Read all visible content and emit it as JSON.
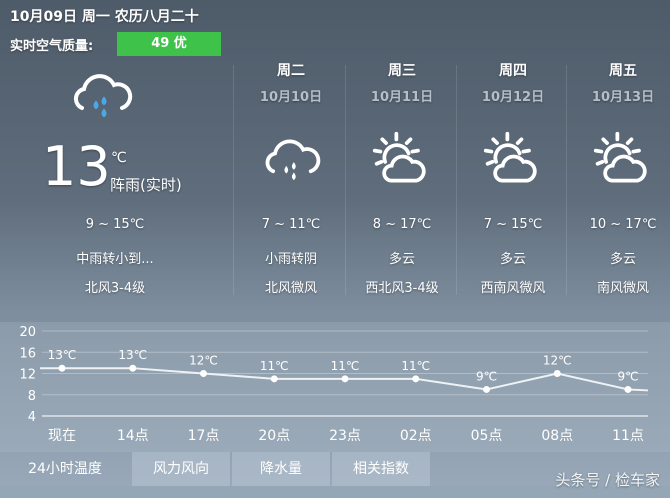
{
  "header": {
    "date_line": "10月09日 周一 农历八月二十",
    "aqi_label": "实时空气质量:",
    "aqi_value": "49 优",
    "aqi_color": "#3fc24a"
  },
  "today": {
    "icon": "rain-cloud-icon",
    "temp": "13",
    "unit": "℃",
    "desc": "阵雨(实时)",
    "range": "9 ~ 15℃",
    "weather": "中雨转小到...",
    "wind": "北风3-4级"
  },
  "forecast": [
    {
      "weekday": "周二",
      "date": "10月10日",
      "icon": "rain-cloud-icon",
      "range": "7 ~ 11℃",
      "weather": "小雨转阴",
      "wind": "北风微风"
    },
    {
      "weekday": "周三",
      "date": "10月11日",
      "icon": "partly-cloudy-icon",
      "range": "8 ~ 17℃",
      "weather": "多云",
      "wind": "西北风3-4级"
    },
    {
      "weekday": "周四",
      "date": "10月12日",
      "icon": "partly-cloudy-icon",
      "range": "7 ~ 15℃",
      "weather": "多云",
      "wind": "西南风微风"
    },
    {
      "weekday": "周五",
      "date": "10月13日",
      "icon": "partly-cloudy-icon",
      "range": "10 ~ 17℃",
      "weather": "多云",
      "wind": "南风微风"
    }
  ],
  "chart_data": {
    "type": "line",
    "categories": [
      "现在",
      "14点",
      "17点",
      "20点",
      "23点",
      "02点",
      "05点",
      "08点",
      "11点"
    ],
    "values": [
      13,
      13,
      12,
      11,
      11,
      11,
      9,
      12,
      9
    ],
    "labels": [
      "13℃",
      "13℃",
      "12℃",
      "11℃",
      "11℃",
      "11℃",
      "9℃",
      "12℃",
      "9℃"
    ],
    "yticks": [
      "20",
      "16",
      "12",
      "8",
      "4"
    ],
    "ylim": [
      4,
      20
    ],
    "grid": true
  },
  "tabs": [
    "24小时温度",
    "风力风向",
    "降水量",
    "相关指数"
  ],
  "watermark": "头条号 / 检车家"
}
